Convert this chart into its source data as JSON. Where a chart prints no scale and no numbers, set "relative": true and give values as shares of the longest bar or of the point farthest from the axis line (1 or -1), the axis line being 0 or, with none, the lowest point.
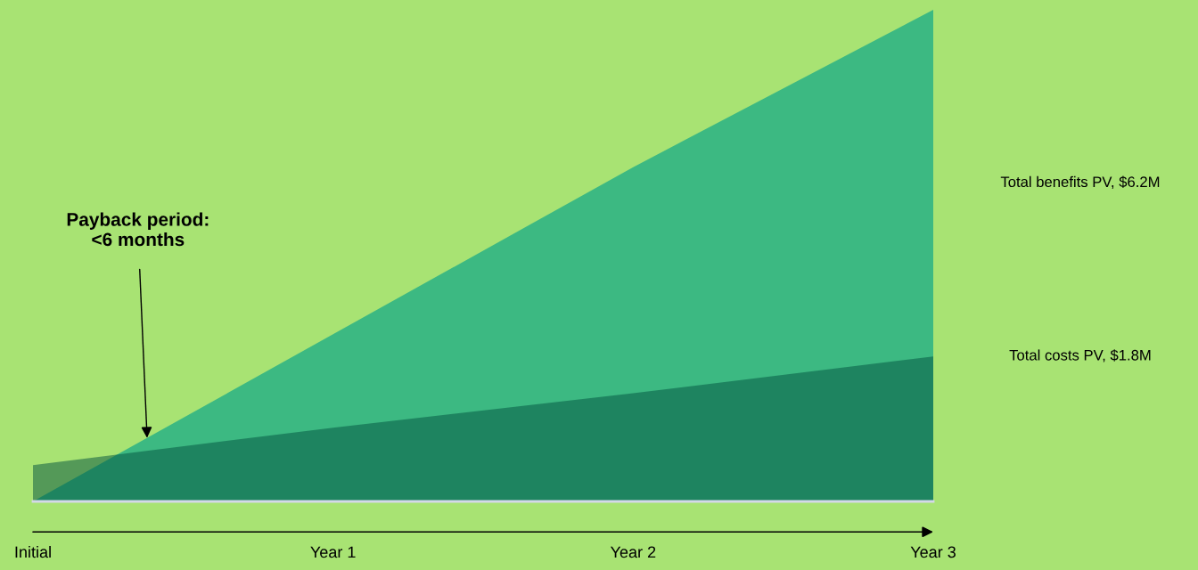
{
  "chart_data": {
    "type": "area",
    "relative": true,
    "categories": [
      "Initial",
      "Year 1",
      "Year 2",
      "Year 3"
    ],
    "series": [
      {
        "name": "Total benefits PV, $6.2M",
        "color": "#3cb982",
        "values": [
          0,
          0.34,
          0.68,
          1
        ]
      },
      {
        "name": "Total costs PV, $1.8M",
        "color": "#004f3e",
        "values": [
          0.074,
          0.15,
          0.22,
          0.295
        ]
      }
    ],
    "annotations": [
      "Payback period:\n<6 months"
    ]
  }
}
